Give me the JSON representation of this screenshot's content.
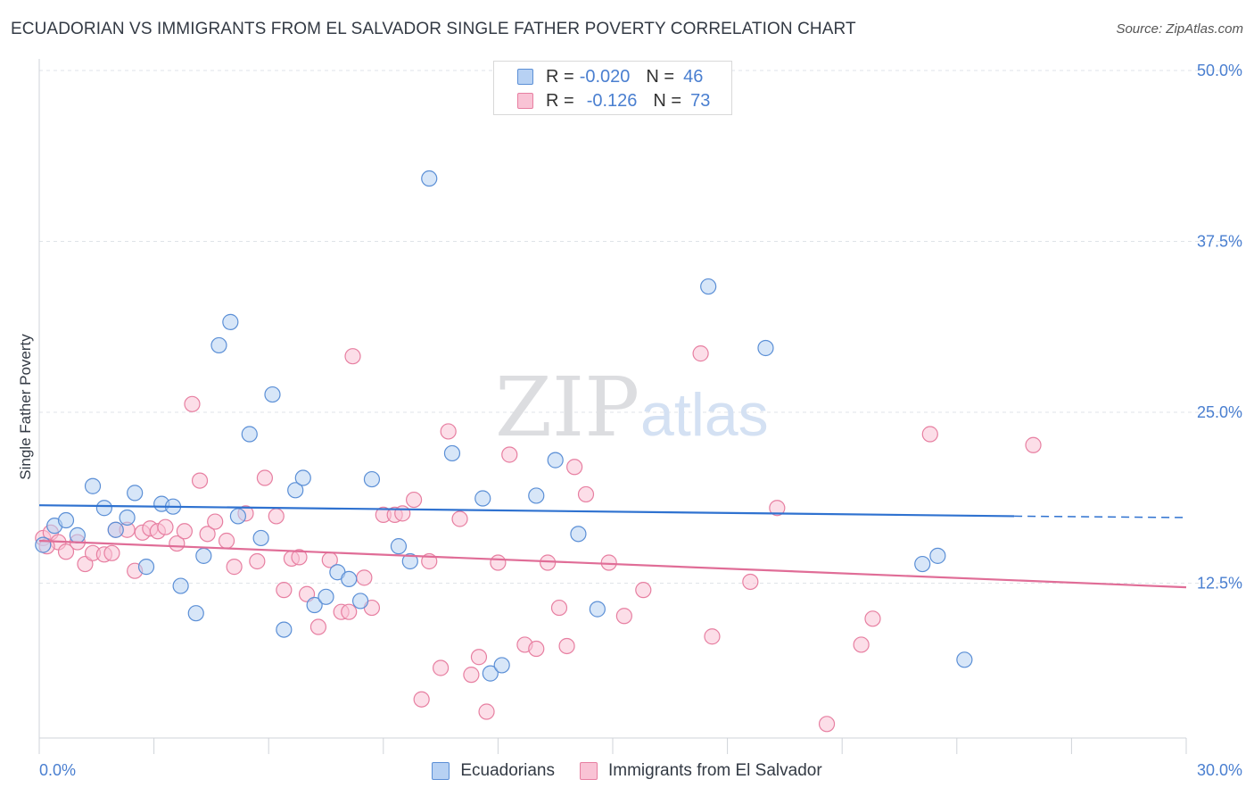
{
  "title": "ECUADORIAN VS IMMIGRANTS FROM EL SALVADOR SINGLE FATHER POVERTY CORRELATION CHART",
  "source": "Source: ZipAtlas.com",
  "watermark": {
    "zip": "ZIP",
    "atlas": "atlas"
  },
  "legend": {
    "rows": [
      {
        "r_label": "R =",
        "r_value": "-0.020",
        "n_label": "N =",
        "n_value": "46"
      },
      {
        "r_label": "R =",
        "r_value": "-0.126",
        "n_label": "N =",
        "n_value": "73"
      }
    ]
  },
  "bottom_legend": [
    "Ecuadorians",
    "Immigrants from El Salvador"
  ],
  "colors": {
    "blue_fill": "#b7d1f3",
    "blue_stroke": "#5b8fd6",
    "blue_line": "#2f72d0",
    "pink_fill": "#f9c3d5",
    "pink_stroke": "#e77fa1",
    "pink_line": "#e06d97",
    "tick_text": "#4a7fd0",
    "grid": "#dfe3e8"
  },
  "chart_data": {
    "type": "scatter",
    "title": "ECUADORIAN VS IMMIGRANTS FROM EL SALVADOR SINGLE FATHER POVERTY CORRELATION CHART",
    "xlabel": "",
    "ylabel": "Single Father Poverty",
    "xlim": [
      0,
      30
    ],
    "ylim": [
      0,
      50
    ],
    "x_tick_labels": [
      "0.0%",
      "30.0%"
    ],
    "y_ticks": [
      12.5,
      25.0,
      37.5,
      50.0
    ],
    "y_tick_labels": [
      "12.5%",
      "25.0%",
      "37.5%",
      "50.0%"
    ],
    "grid": true,
    "series": [
      {
        "name": "Ecuadorians",
        "R": -0.02,
        "N": 46,
        "trend": {
          "x0": 0,
          "y0": 18.2,
          "x1": 25.5,
          "y1": 17.4,
          "dash_to_x": 30,
          "dash_to_y": 17.3
        },
        "points": [
          [
            0.1,
            15.3
          ],
          [
            0.4,
            16.7
          ],
          [
            0.7,
            17.1
          ],
          [
            1.0,
            16.0
          ],
          [
            1.4,
            19.6
          ],
          [
            1.7,
            18.0
          ],
          [
            2.0,
            16.4
          ],
          [
            2.3,
            17.3
          ],
          [
            2.5,
            19.1
          ],
          [
            2.8,
            13.7
          ],
          [
            3.2,
            18.3
          ],
          [
            3.5,
            18.1
          ],
          [
            3.7,
            12.3
          ],
          [
            4.1,
            10.3
          ],
          [
            4.3,
            14.5
          ],
          [
            4.7,
            29.9
          ],
          [
            5.0,
            31.6
          ],
          [
            5.2,
            17.4
          ],
          [
            5.5,
            23.4
          ],
          [
            5.8,
            15.8
          ],
          [
            6.1,
            26.3
          ],
          [
            6.4,
            9.1
          ],
          [
            6.7,
            19.3
          ],
          [
            6.9,
            20.2
          ],
          [
            7.2,
            10.9
          ],
          [
            7.5,
            11.5
          ],
          [
            7.8,
            13.3
          ],
          [
            8.1,
            12.8
          ],
          [
            8.4,
            11.2
          ],
          [
            8.7,
            20.1
          ],
          [
            9.4,
            15.2
          ],
          [
            9.7,
            14.1
          ],
          [
            10.2,
            42.1
          ],
          [
            10.8,
            22.0
          ],
          [
            11.6,
            18.7
          ],
          [
            11.8,
            5.9
          ],
          [
            12.1,
            6.5
          ],
          [
            13.0,
            18.9
          ],
          [
            13.5,
            21.5
          ],
          [
            14.1,
            16.1
          ],
          [
            14.6,
            10.6
          ],
          [
            17.5,
            34.2
          ],
          [
            19.0,
            29.7
          ],
          [
            23.1,
            13.9
          ],
          [
            23.5,
            14.5
          ],
          [
            24.2,
            6.9
          ]
        ]
      },
      {
        "name": "Immigrants from El Salvador",
        "R": -0.126,
        "N": 73,
        "trend": {
          "x0": 0,
          "y0": 15.6,
          "x1": 30,
          "y1": 12.2
        },
        "points": [
          [
            0.1,
            15.8
          ],
          [
            0.3,
            16.2
          ],
          [
            0.5,
            15.5
          ],
          [
            0.7,
            14.8
          ],
          [
            1.0,
            15.5
          ],
          [
            1.2,
            13.9
          ],
          [
            1.4,
            14.7
          ],
          [
            1.7,
            14.6
          ],
          [
            1.9,
            14.7
          ],
          [
            2.0,
            16.4
          ],
          [
            2.3,
            16.4
          ],
          [
            2.5,
            13.4
          ],
          [
            2.7,
            16.2
          ],
          [
            2.9,
            16.5
          ],
          [
            3.1,
            16.3
          ],
          [
            3.3,
            16.6
          ],
          [
            3.6,
            15.4
          ],
          [
            3.8,
            16.3
          ],
          [
            4.0,
            25.6
          ],
          [
            4.2,
            20.0
          ],
          [
            4.4,
            16.1
          ],
          [
            4.6,
            17.0
          ],
          [
            4.9,
            15.6
          ],
          [
            5.1,
            13.7
          ],
          [
            5.4,
            17.6
          ],
          [
            5.7,
            14.1
          ],
          [
            5.9,
            20.2
          ],
          [
            6.2,
            17.4
          ],
          [
            6.4,
            12.0
          ],
          [
            6.6,
            14.3
          ],
          [
            6.8,
            14.4
          ],
          [
            7.0,
            11.7
          ],
          [
            7.3,
            9.3
          ],
          [
            7.6,
            14.2
          ],
          [
            7.9,
            10.4
          ],
          [
            8.1,
            10.4
          ],
          [
            8.2,
            29.1
          ],
          [
            8.5,
            12.9
          ],
          [
            8.7,
            10.7
          ],
          [
            9.0,
            17.5
          ],
          [
            9.3,
            17.5
          ],
          [
            9.5,
            17.6
          ],
          [
            9.8,
            18.6
          ],
          [
            10.0,
            4.0
          ],
          [
            10.2,
            14.1
          ],
          [
            10.5,
            6.3
          ],
          [
            10.7,
            23.6
          ],
          [
            11.0,
            17.2
          ],
          [
            11.3,
            5.8
          ],
          [
            11.5,
            7.1
          ],
          [
            11.7,
            3.1
          ],
          [
            12.0,
            14.0
          ],
          [
            12.3,
            21.9
          ],
          [
            12.7,
            8.0
          ],
          [
            13.0,
            7.7
          ],
          [
            13.3,
            14.0
          ],
          [
            13.6,
            10.7
          ],
          [
            13.8,
            7.9
          ],
          [
            14.0,
            21.0
          ],
          [
            14.3,
            19.0
          ],
          [
            14.9,
            14.0
          ],
          [
            15.3,
            10.1
          ],
          [
            15.8,
            12.0
          ],
          [
            17.3,
            29.3
          ],
          [
            17.6,
            8.6
          ],
          [
            18.6,
            12.6
          ],
          [
            19.3,
            18.0
          ],
          [
            20.6,
            2.2
          ],
          [
            21.5,
            8.0
          ],
          [
            21.8,
            9.9
          ],
          [
            23.3,
            23.4
          ],
          [
            26.0,
            22.6
          ],
          [
            0.2,
            15.2
          ]
        ]
      }
    ]
  }
}
